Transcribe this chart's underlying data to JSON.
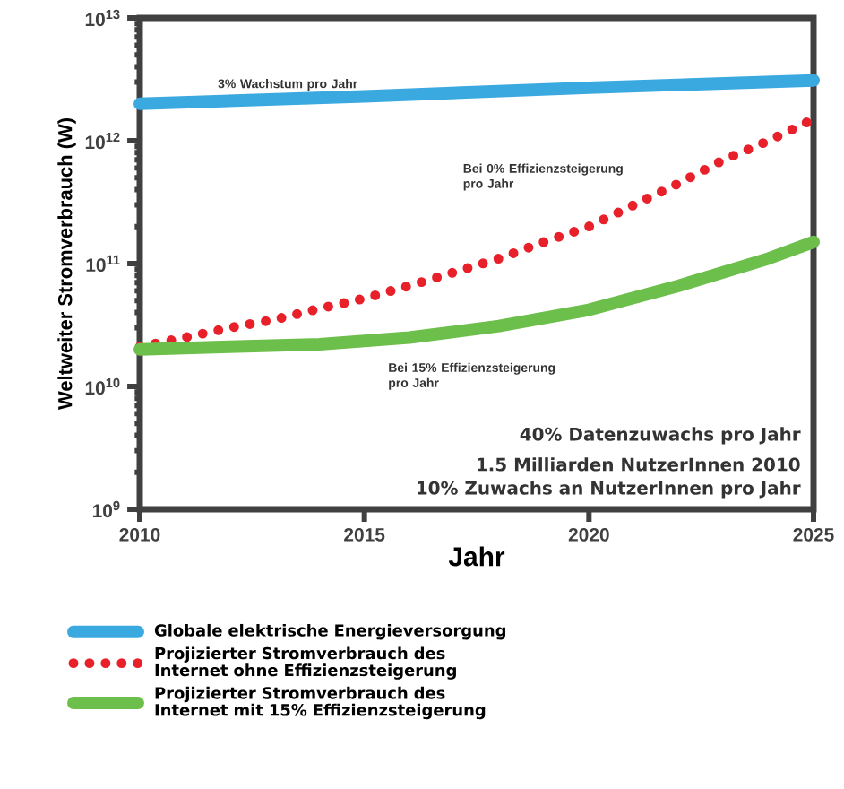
{
  "chart_data": {
    "type": "line",
    "xlabel": "Jahr",
    "ylabel": "Weltweiter Stromverbrauch (W)",
    "log": "y",
    "xlim": [
      2010,
      2025
    ],
    "ylim": [
      1000000000.0,
      10000000000000.0
    ],
    "xticks": [
      2010,
      2015,
      2020,
      2025
    ],
    "yticks": [
      {
        "value": 1000000000.0,
        "label": "10$^{9}$"
      },
      {
        "value": 10000000000.0,
        "label": "10$^{10}$"
      },
      {
        "value": 100000000000.0,
        "label": "10$^{11}$"
      },
      {
        "value": 1000000000000.0,
        "label": "10$^{12}$"
      },
      {
        "value": 10000000000000.0,
        "label": "10$^{13}$"
      }
    ],
    "legend": "bottom",
    "series": [
      {
        "name": "Globale elektrische Energieversorgung",
        "color": "#3aa9e0",
        "line_style": "solid",
        "x": [
          2010,
          2015,
          2020,
          2025
        ],
        "values": [
          2000000000000.0,
          2300000000000.0,
          2700000000000.0,
          3100000000000.0
        ]
      },
      {
        "name": "Projizierter Stromverbrauch des Internet ohne Effizienzsteigerung",
        "color": "#e8202a",
        "line_style": "dotted",
        "x": [
          2010,
          2011,
          2012,
          2013,
          2014,
          2015,
          2016,
          2017,
          2018,
          2019,
          2020,
          2021,
          2022,
          2023,
          2024,
          2025
        ],
        "values": [
          21000000000.0,
          25000000000.0,
          30000000000.0,
          35000000000.0,
          43000000000.0,
          52000000000.0,
          66000000000.0,
          85000000000.0,
          110000000000.0,
          150000000000.0,
          200000000000.0,
          300000000000.0,
          450000000000.0,
          700000000000.0,
          1000000000000.0,
          1500000000000.0
        ]
      },
      {
        "name": "Projizierter Stromverbrauch des Internet mit 15% Effizienzsteigerung",
        "color": "#6dbf4b",
        "line_style": "solid",
        "x": [
          2010,
          2012,
          2014,
          2016,
          2018,
          2020,
          2022,
          2024,
          2025
        ],
        "values": [
          20000000000.0,
          21000000000.0,
          22000000000.0,
          25000000000.0,
          31000000000.0,
          42000000000.0,
          66000000000.0,
          110000000000.0,
          150000000000.0
        ]
      }
    ],
    "annotations": [
      {
        "text": "3% Wachstum pro Jahr",
        "x": 2014,
        "y": 2300000000000.0
      },
      {
        "text": "Bei 0% Effizienzsteigerung pro Jahr",
        "x": 2020,
        "y": 200000000000.0
      },
      {
        "text": "Bei 15% Effizienzsteigerung pro Jahr",
        "x": 2016,
        "y": 25000000000.0
      },
      "40% Datenzuwachs pro Jahr",
      "1.5 Milliarden NutzerInnen 2010",
      "10% Zuwachs an NutzerInnen pro Jahr"
    ]
  }
}
